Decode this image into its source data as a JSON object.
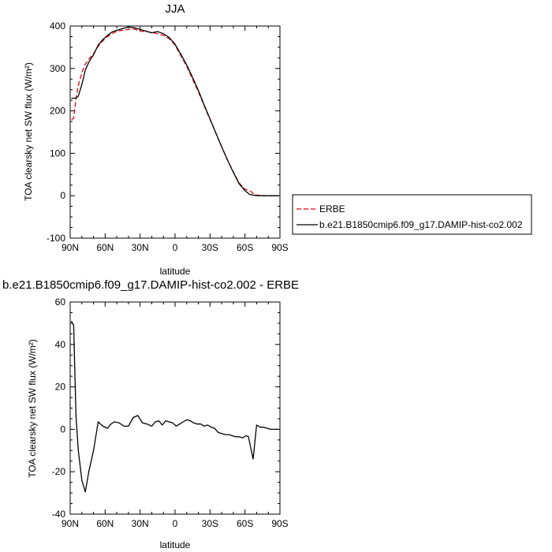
{
  "chart_data": [
    {
      "type": "line",
      "title": "JJA",
      "xlabel": "latitude",
      "ylabel": "TOA clearsky net SW flux (W/m²)",
      "xlim": [
        90,
        -90
      ],
      "ylim": [
        -100,
        400
      ],
      "xticks": [
        {
          "value": 90,
          "label": "90N"
        },
        {
          "value": 60,
          "label": "60N"
        },
        {
          "value": 30,
          "label": "30N"
        },
        {
          "value": 0,
          "label": "0"
        },
        {
          "value": -30,
          "label": "30S"
        },
        {
          "value": -60,
          "label": "60S"
        },
        {
          "value": -90,
          "label": "90S"
        }
      ],
      "yticks": [
        {
          "value": 400,
          "label": "400"
        },
        {
          "value": 300,
          "label": "300"
        },
        {
          "value": 200,
          "label": "200"
        },
        {
          "value": 100,
          "label": "100"
        },
        {
          "value": 0,
          "label": "0"
        },
        {
          "value": -100,
          "label": "-100"
        }
      ],
      "legend_position": "outside-right",
      "series": [
        {
          "name": "ERBE",
          "color": "#e8000b",
          "dash": "dashed",
          "x": [
            89,
            87,
            85,
            83,
            80,
            77,
            74,
            70,
            66,
            62,
            58,
            54,
            50,
            45,
            40,
            35,
            30,
            25,
            20,
            15,
            10,
            5,
            0,
            -5,
            -10,
            -15,
            -20,
            -25,
            -30,
            -35,
            -40,
            -45,
            -50,
            -55,
            -60,
            -64,
            -66,
            -68,
            -72,
            -78,
            -84,
            -89
          ],
          "y": [
            180,
            182,
            230,
            260,
            290,
            310,
            322,
            335,
            352,
            365,
            375,
            382,
            388,
            390,
            392,
            393,
            388,
            387,
            385,
            382,
            378,
            370,
            355,
            330,
            305,
            275,
            245,
            212,
            180,
            148,
            115,
            85,
            56,
            30,
            15,
            12,
            8,
            2,
            1,
            0,
            0,
            0
          ]
        },
        {
          "name": "b.e21.B1850cmip6.f09_g17.DAMIP-hist-co2.002",
          "color": "#000000",
          "dash": "solid",
          "x": [
            89,
            87,
            85,
            83,
            80,
            77,
            74,
            70,
            66,
            62,
            58,
            54,
            50,
            45,
            40,
            35,
            30,
            25,
            20,
            15,
            10,
            5,
            0,
            -5,
            -10,
            -15,
            -20,
            -25,
            -30,
            -35,
            -40,
            -45,
            -50,
            -55,
            -60,
            -64,
            -66,
            -68,
            -72,
            -78,
            -84,
            -89
          ],
          "y": [
            230,
            230,
            230,
            235,
            262,
            296,
            315,
            332,
            355,
            368,
            378,
            386,
            390,
            394,
            398,
            396,
            392,
            388,
            384,
            387,
            382,
            373,
            357,
            333,
            308,
            279,
            248,
            214,
            181,
            148,
            115,
            84,
            55,
            28,
            12,
            3,
            2,
            1,
            0,
            0,
            0,
            0
          ]
        }
      ]
    },
    {
      "type": "line",
      "title": "b.e21.B1850cmip6.f09_g17.DAMIP-hist-co2.002 - ERBE",
      "xlabel": "latitude",
      "ylabel": "TOA clearsky net SW flux (W/m²)",
      "xlim": [
        90,
        -90
      ],
      "ylim": [
        -40,
        60
      ],
      "xticks": [
        {
          "value": 90,
          "label": "90N"
        },
        {
          "value": 60,
          "label": "60N"
        },
        {
          "value": 30,
          "label": "30N"
        },
        {
          "value": 0,
          "label": "0"
        },
        {
          "value": -30,
          "label": "30S"
        },
        {
          "value": -60,
          "label": "60S"
        },
        {
          "value": -90,
          "label": "90S"
        }
      ],
      "yticks": [
        {
          "value": 60,
          "label": "60"
        },
        {
          "value": 40,
          "label": "40"
        },
        {
          "value": 20,
          "label": "20"
        },
        {
          "value": 0,
          "label": "0"
        },
        {
          "value": -20,
          "label": "-20"
        },
        {
          "value": -40,
          "label": "-40"
        }
      ],
      "series": [
        {
          "color": "#000000",
          "dash": "solid",
          "x": [
            89,
            87,
            85,
            83,
            80,
            77,
            74,
            70,
            66,
            62,
            58,
            55,
            52,
            48,
            44,
            40,
            36,
            32,
            28,
            24,
            20,
            17,
            14,
            11,
            8,
            5,
            2,
            -1,
            -4,
            -7,
            -10,
            -13,
            -16,
            -19,
            -22,
            -25,
            -28,
            -31,
            -34,
            -37,
            -40,
            -43,
            -46,
            -49,
            -52,
            -55,
            -58,
            -61,
            -63,
            -65,
            -67,
            -70,
            -73,
            -76,
            -79,
            -82,
            -85,
            -89
          ],
          "y": [
            51,
            49,
            6,
            -10,
            -24,
            -29.5,
            -20,
            -10,
            3.5,
            1.5,
            0.5,
            2.5,
            3.5,
            3,
            1.5,
            1.5,
            5.5,
            6.5,
            3,
            2.5,
            1.5,
            3.5,
            4,
            2,
            4,
            3.5,
            3,
            1.5,
            2.5,
            3.5,
            4.5,
            4,
            3,
            2.5,
            2.5,
            1.5,
            2,
            1,
            0.5,
            -1.5,
            -2,
            -2.5,
            -2.5,
            -3,
            -3.5,
            -3.5,
            -4,
            -3,
            -3.5,
            -9,
            -14,
            2,
            1,
            1,
            0.5,
            0,
            0,
            0
          ]
        }
      ]
    }
  ]
}
